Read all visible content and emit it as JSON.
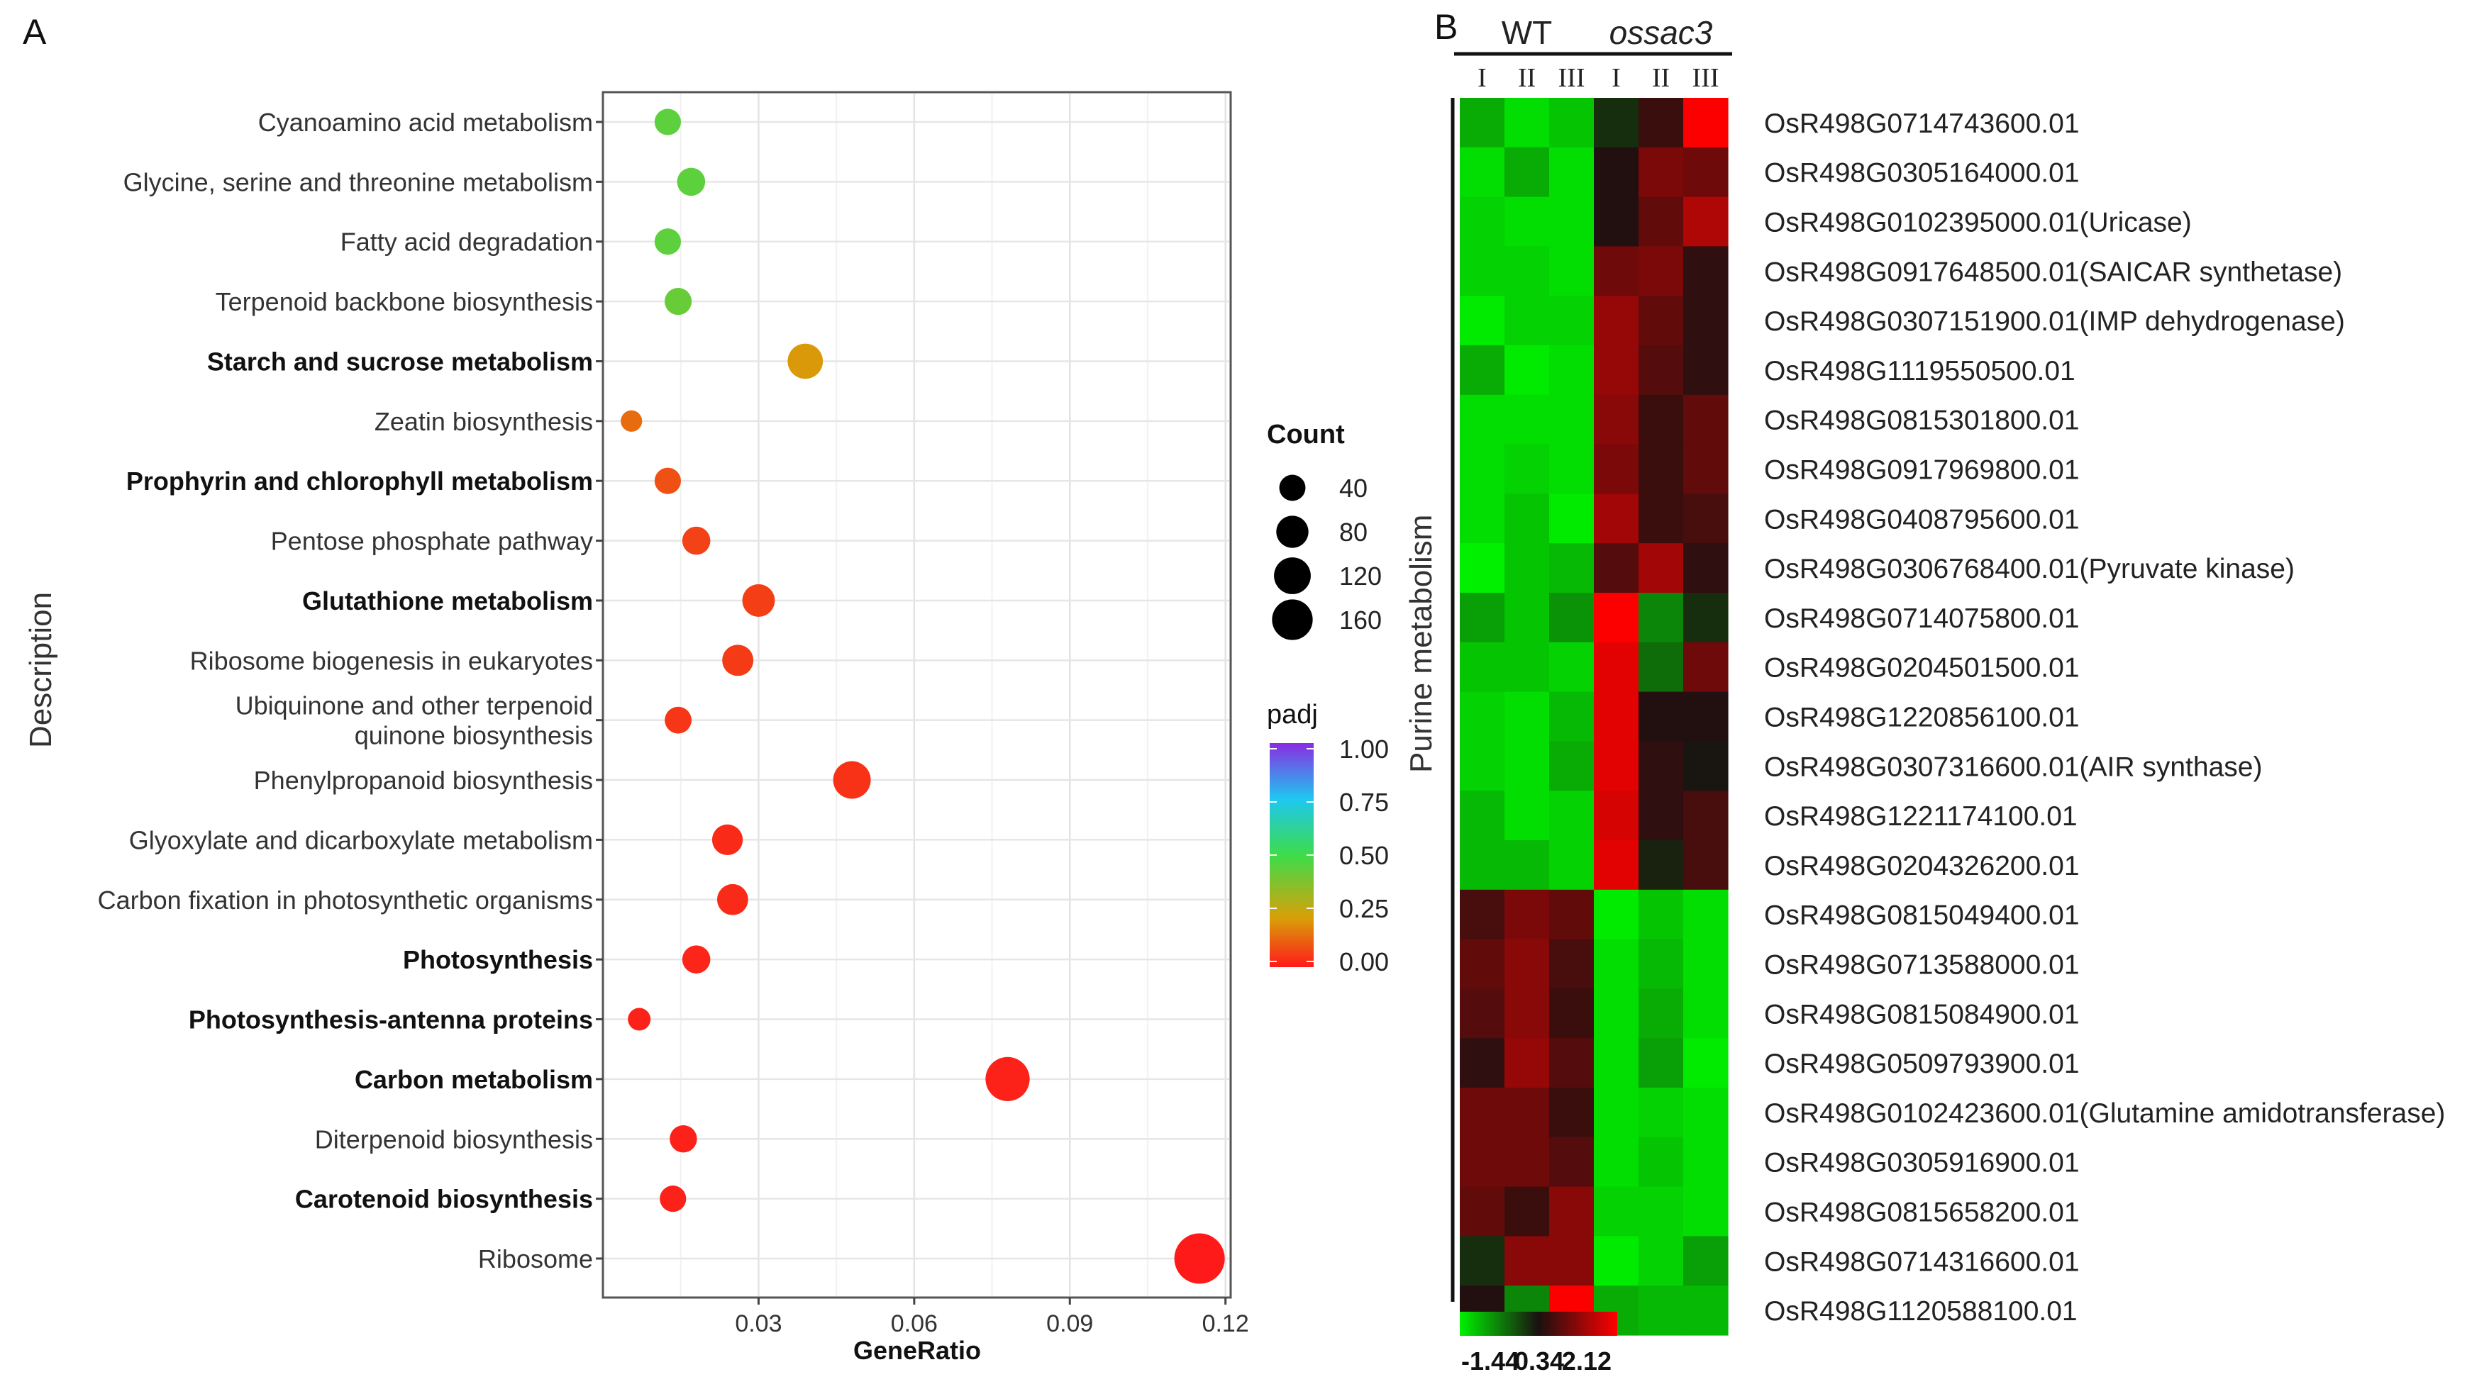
{
  "panel_a_label": "A",
  "panel_b_label": "B",
  "chart_data": [
    {
      "type": "scatter",
      "title": "",
      "xlabel": "GeneRatio",
      "ylabel": "Description",
      "xlim": [
        0.0,
        0.121
      ],
      "xticks": [
        0.03,
        0.06,
        0.09,
        0.12
      ],
      "xtick_labels": [
        "0.03",
        "0.06",
        "0.09",
        "0.12"
      ],
      "grid": true,
      "size_legend": {
        "title": "Count",
        "values": [
          40,
          80,
          120,
          160
        ]
      },
      "color_legend": {
        "title": "padj",
        "ticks": [
          "1.00",
          "0.75",
          "0.50",
          "0.25",
          "0.00"
        ],
        "colors": [
          "#8a2be2",
          "#1ec8f0",
          "#3ddc4a",
          "#d8a008",
          "#ff1a1a"
        ]
      },
      "terms": [
        {
          "label": "Cyanoamino acid metabolism",
          "bold": false,
          "x": 0.0125,
          "count": 30,
          "padj": 0.45
        },
        {
          "label": "Glycine, serine and threonine metabolism",
          "bold": false,
          "x": 0.017,
          "count": 38,
          "padj": 0.45
        },
        {
          "label": "Fatty acid degradation",
          "bold": false,
          "x": 0.0125,
          "count": 30,
          "padj": 0.45
        },
        {
          "label": "Terpenoid backbone biosynthesis",
          "bold": false,
          "x": 0.0145,
          "count": 33,
          "padj": 0.43
        },
        {
          "label": "Starch and sucrose metabolism",
          "bold": true,
          "x": 0.039,
          "count": 82,
          "padj": 0.24
        },
        {
          "label": "Zeatin biosynthesis",
          "bold": false,
          "x": 0.0055,
          "count": 12,
          "padj": 0.17
        },
        {
          "label": "Prophyrin and chlorophyll metabolism",
          "bold": true,
          "x": 0.0125,
          "count": 30,
          "padj": 0.13
        },
        {
          "label": "Pentose phosphate pathway",
          "bold": false,
          "x": 0.018,
          "count": 38,
          "padj": 0.1
        },
        {
          "label": "Glutathione metabolism",
          "bold": true,
          "x": 0.03,
          "count": 63,
          "padj": 0.09
        },
        {
          "label": "Ribosome biogenesis in eukaryotes",
          "bold": false,
          "x": 0.026,
          "count": 55,
          "padj": 0.08
        },
        {
          "label": "Ubiquinone and other terpenoid\nquinone biosynthesis",
          "bold": false,
          "x": 0.0145,
          "count": 32,
          "padj": 0.07
        },
        {
          "label": "Phenylpropanoid biosynthesis",
          "bold": false,
          "x": 0.048,
          "count": 100,
          "padj": 0.06
        },
        {
          "label": "Glyoxylate and dicarboxylate metabolism",
          "bold": false,
          "x": 0.024,
          "count": 52,
          "padj": 0.04
        },
        {
          "label": "Carbon fixation in photosynthetic organisms",
          "bold": false,
          "x": 0.025,
          "count": 54,
          "padj": 0.04
        },
        {
          "label": "Photosynthesis",
          "bold": true,
          "x": 0.018,
          "count": 38,
          "padj": 0.03
        },
        {
          "label": "Photosynthesis-antenna proteins",
          "bold": true,
          "x": 0.007,
          "count": 16,
          "padj": 0.02
        },
        {
          "label": "Carbon metabolism",
          "bold": true,
          "x": 0.078,
          "count": 160,
          "padj": 0.02
        },
        {
          "label": "Diterpenoid biosynthesis",
          "bold": false,
          "x": 0.0155,
          "count": 34,
          "padj": 0.02
        },
        {
          "label": "Carotenoid biosynthesis",
          "bold": true,
          "x": 0.0135,
          "count": 30,
          "padj": 0.02
        },
        {
          "label": "Ribosome",
          "bold": false,
          "x": 0.115,
          "count": 230,
          "padj": 0.0
        }
      ]
    },
    {
      "type": "heatmap",
      "row_group_label": "Purine metabolism",
      "column_groups": [
        {
          "name": "WT",
          "italic": false,
          "columns": [
            "I",
            "II",
            "III"
          ]
        },
        {
          "name": "ossac3",
          "italic": true,
          "columns": [
            "I",
            "II",
            "III"
          ]
        }
      ],
      "scale": {
        "min": -1.44,
        "mid": 0.34,
        "max": 2.12,
        "labels": [
          "-1.44",
          "0.34",
          "2.12"
        ]
      },
      "rows": [
        {
          "gene": "OsR498G0714743600.01",
          "values": [
            -0.9,
            -1.3,
            -1.1,
            0.1,
            0.6,
            2.1
          ]
        },
        {
          "gene": "OsR498G0305164000.01",
          "values": [
            -1.3,
            -0.9,
            -1.3,
            0.4,
            1.1,
            1.0
          ]
        },
        {
          "gene": "OsR498G0102395000.01(Uricase)",
          "values": [
            -1.2,
            -1.3,
            -1.3,
            0.4,
            0.9,
            1.5
          ]
        },
        {
          "gene": "OsR498G0917648500.01(SAICAR synthetase)",
          "values": [
            -1.2,
            -1.2,
            -1.3,
            1.0,
            1.1,
            0.5
          ]
        },
        {
          "gene": "OsR498G0307151900.01(IMP dehydrogenase)",
          "values": [
            -1.4,
            -1.2,
            -1.2,
            1.3,
            0.9,
            0.5
          ]
        },
        {
          "gene": "OsR498G1119550500.01",
          "values": [
            -0.9,
            -1.4,
            -1.3,
            1.3,
            0.8,
            0.5
          ]
        },
        {
          "gene": "OsR498G0815301800.01",
          "values": [
            -1.3,
            -1.3,
            -1.3,
            1.2,
            0.6,
            0.9
          ]
        },
        {
          "gene": "OsR498G0917969800.01",
          "values": [
            -1.3,
            -1.2,
            -1.3,
            1.1,
            0.6,
            0.9
          ]
        },
        {
          "gene": "OsR498G0408795600.01",
          "values": [
            -1.3,
            -1.1,
            -1.4,
            1.4,
            0.6,
            0.7
          ]
        },
        {
          "gene": "OsR498G0306768400.01(Pyruvate kinase)",
          "values": [
            -1.6,
            -1.1,
            -1.0,
            0.8,
            1.4,
            0.5
          ]
        },
        {
          "gene": "OsR498G0714075800.01",
          "values": [
            -0.8,
            -1.1,
            -0.7,
            2.1,
            -0.6,
            0.1
          ]
        },
        {
          "gene": "OsR498G0204501500.01",
          "values": [
            -1.1,
            -1.1,
            -1.2,
            1.9,
            -0.4,
            1.0
          ]
        },
        {
          "gene": "OsR498G1220856100.01",
          "values": [
            -1.2,
            -1.3,
            -1.0,
            1.9,
            0.4,
            0.4
          ]
        },
        {
          "gene": "OsR498G0307316600.01(AIR synthase)",
          "values": [
            -1.2,
            -1.3,
            -0.9,
            1.9,
            0.5,
            0.3
          ]
        },
        {
          "gene": "OsR498G1221174100.01",
          "values": [
            -1.0,
            -1.3,
            -1.2,
            1.8,
            0.5,
            0.7
          ]
        },
        {
          "gene": "OsR498G0204326200.01",
          "values": [
            -1.0,
            -1.0,
            -1.2,
            1.9,
            0.2,
            0.7
          ]
        },
        {
          "gene": "OsR498G0815049400.01",
          "values": [
            0.7,
            1.1,
            0.9,
            -1.4,
            -1.1,
            -1.3
          ]
        },
        {
          "gene": "OsR498G0713588000.01",
          "values": [
            0.9,
            1.2,
            0.7,
            -1.3,
            -1.0,
            -1.3
          ]
        },
        {
          "gene": "OsR498G0815084900.01",
          "values": [
            0.8,
            1.2,
            0.6,
            -1.3,
            -0.9,
            -1.3
          ]
        },
        {
          "gene": "OsR498G0509793900.01",
          "values": [
            0.5,
            1.3,
            0.8,
            -1.3,
            -0.8,
            -1.4
          ]
        },
        {
          "gene": "OsR498G0102423600.01(Glutamine amidotransferase)",
          "values": [
            1.0,
            1.0,
            0.6,
            -1.3,
            -1.2,
            -1.3
          ]
        },
        {
          "gene": "OsR498G0305916900.01",
          "values": [
            1.0,
            1.0,
            0.8,
            -1.3,
            -1.1,
            -1.3
          ]
        },
        {
          "gene": "OsR498G0815658200.01",
          "values": [
            0.9,
            0.6,
            1.2,
            -1.2,
            -1.2,
            -1.3
          ]
        },
        {
          "gene": "OsR498G0714316600.01",
          "values": [
            0.1,
            1.2,
            1.2,
            -1.4,
            -1.2,
            -0.8
          ]
        },
        {
          "gene": "OsR498G1120588100.01",
          "values": [
            0.4,
            -0.6,
            2.1,
            -0.9,
            -1.0,
            -1.0
          ]
        }
      ]
    }
  ]
}
